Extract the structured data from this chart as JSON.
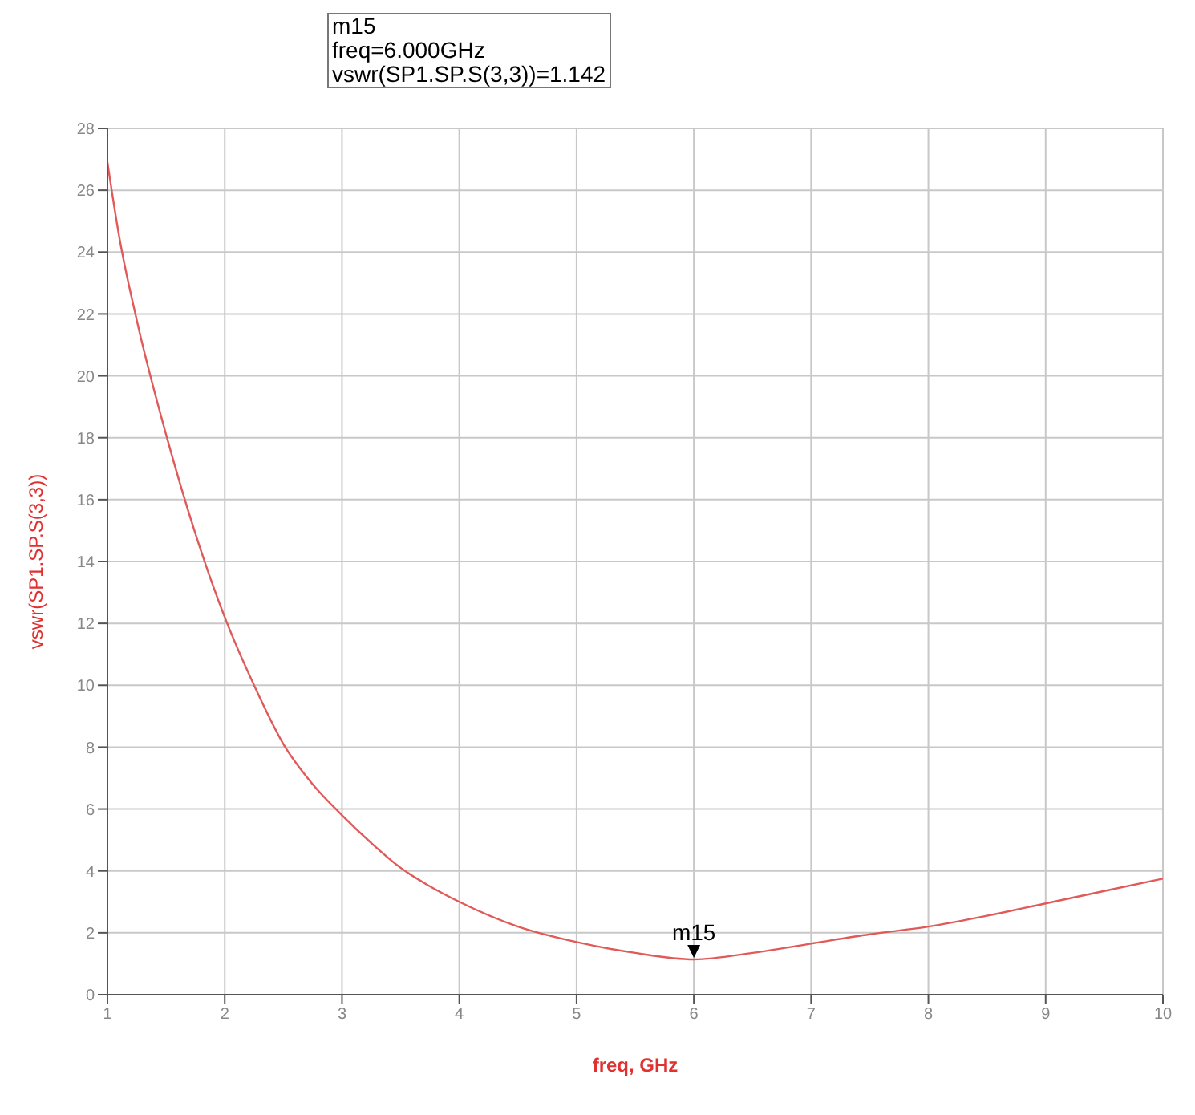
{
  "chart_data": {
    "type": "line",
    "xlabel": "freq, GHz",
    "ylabel": "vswr(SP1.SP.S(3,3))",
    "x": [
      1,
      1.1,
      1.25,
      1.5,
      1.75,
      2,
      2.25,
      2.5,
      2.75,
      3,
      3.25,
      3.5,
      3.75,
      4,
      4.5,
      5,
      5.5,
      6,
      6.5,
      7,
      7.5,
      8,
      8.5,
      9,
      9.5,
      10
    ],
    "series": [
      {
        "color": "#e05a5a",
        "values": [
          26.9,
          24.5,
          21.8,
          18.1,
          14.9,
          12.2,
          10.0,
          8.1,
          6.8,
          5.8,
          4.9,
          4.1,
          3.5,
          3.0,
          2.2,
          1.7,
          1.35,
          1.142,
          1.35,
          1.65,
          1.95,
          2.2,
          2.55,
          2.95,
          3.35,
          3.75
        ]
      }
    ],
    "xlim": [
      1,
      10
    ],
    "xticks": [
      1,
      2,
      3,
      4,
      5,
      6,
      7,
      8,
      9,
      10
    ],
    "ylim": [
      0,
      28
    ],
    "yticks": [
      0,
      2,
      4,
      6,
      8,
      10,
      12,
      14,
      16,
      18,
      20,
      22,
      24,
      26,
      28
    ],
    "grid": true,
    "marker": "none",
    "line_style": "solid",
    "annotations": [
      "m15",
      "freq=6.000GHz",
      "vswr(SP1.SP.S(3,3))=1.142",
      {
        "text": "m15",
        "x": 6,
        "y": 1.142
      }
    ]
  }
}
